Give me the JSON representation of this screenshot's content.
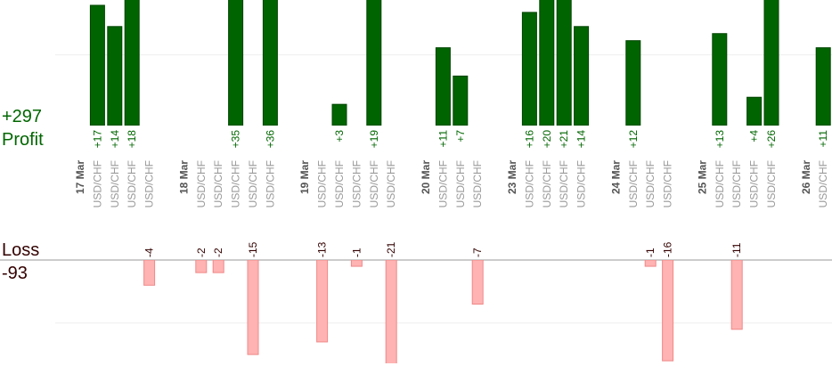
{
  "chart_data": {
    "type": "bar",
    "profit_label": "Profit",
    "profit_total": "+297",
    "loss_label": "Loss",
    "loss_total": "-93",
    "profit_color": "#006400",
    "loss_color": "#ffb3b3",
    "profit_ylim": [
      0,
      17.75
    ],
    "loss_ylim": [
      -16.4,
      0
    ],
    "profit_grid": [
      10
    ],
    "loss_grid": [
      -10
    ],
    "grid": true,
    "days": [
      {
        "date": "17 Mar",
        "symbols": [
          "USD/CHF",
          "USD/CHF",
          "USD/CHF",
          "USD/CHF"
        ],
        "values": [
          17,
          14,
          18,
          -4
        ],
        "value_labels": [
          "+17",
          "+14",
          "+18",
          "-4"
        ]
      },
      {
        "date": "18 Mar",
        "symbols": [
          "USD/CHF",
          "USD/CHF",
          "USD/CHF",
          "USD/CHF",
          "USD/CHF"
        ],
        "values": [
          -2,
          -2,
          35,
          -15,
          36
        ],
        "value_labels": [
          "-2",
          "-2",
          "+35",
          "-15",
          "+36"
        ]
      },
      {
        "date": "19 Mar",
        "symbols": [
          "USD/CHF",
          "USD/CHF",
          "USD/CHF",
          "USD/CHF",
          "USD/CHF"
        ],
        "values": [
          -13,
          3,
          -1,
          19,
          -21
        ],
        "value_labels": [
          "-13",
          "+3",
          "-1",
          "+19",
          "-21"
        ]
      },
      {
        "date": "20 Mar",
        "symbols": [
          "USD/CHF",
          "USD/CHF",
          "USD/CHF"
        ],
        "values": [
          11,
          7,
          -7
        ],
        "value_labels": [
          "+11",
          "+7",
          "-7"
        ]
      },
      {
        "date": "23 Mar",
        "symbols": [
          "USD/CHF",
          "USD/CHF",
          "USD/CHF",
          "USD/CHF"
        ],
        "values": [
          16,
          20,
          21,
          14
        ],
        "value_labels": [
          "+16",
          "+20",
          "+21",
          "+14"
        ]
      },
      {
        "date": "24 Mar",
        "symbols": [
          "USD/CHF",
          "USD/CHF",
          "USD/CHF"
        ],
        "values": [
          12,
          -1,
          -16
        ],
        "value_labels": [
          "+12",
          "-1",
          "-16"
        ]
      },
      {
        "date": "25 Mar",
        "symbols": [
          "USD/CHF",
          "USD/CHF",
          "USD/CHF",
          "USD/CHF"
        ],
        "values": [
          13,
          -11,
          4,
          26
        ],
        "value_labels": [
          "+13",
          "-11",
          "+4",
          "+26"
        ]
      },
      {
        "date": "26 Mar",
        "symbols": [
          "USD/CHF"
        ],
        "values": [
          11
        ],
        "value_labels": [
          "+11"
        ]
      }
    ]
  }
}
